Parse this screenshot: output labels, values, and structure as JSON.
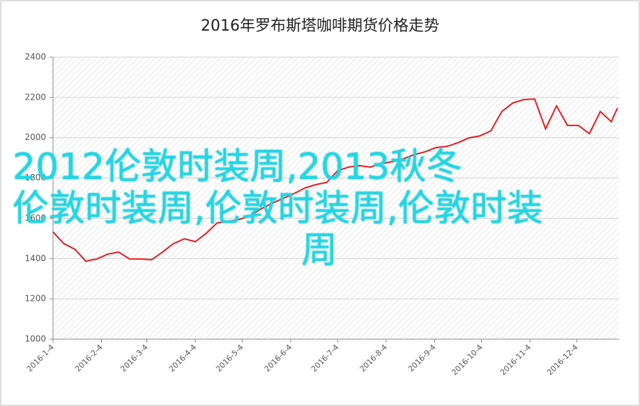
{
  "chart_data": {
    "type": "line",
    "title": "2016年罗布斯塔咖啡期货价格走势",
    "x": [
      "2016-1-4",
      "2016-1-11",
      "2016-1-18",
      "2016-1-25",
      "2016-2-1",
      "2016-2-8",
      "2016-2-15",
      "2016-2-22",
      "2016-2-29",
      "2016-3-7",
      "2016-3-14",
      "2016-3-21",
      "2016-3-28",
      "2016-4-4",
      "2016-4-11",
      "2016-4-18",
      "2016-4-25",
      "2016-5-2",
      "2016-5-9",
      "2016-5-16",
      "2016-5-23",
      "2016-5-30",
      "2016-6-6",
      "2016-6-13",
      "2016-6-20",
      "2016-6-27",
      "2016-7-4",
      "2016-7-11",
      "2016-7-18",
      "2016-7-25",
      "2016-8-1",
      "2016-8-8",
      "2016-8-15",
      "2016-8-22",
      "2016-8-29",
      "2016-9-5",
      "2016-9-12",
      "2016-9-19",
      "2016-9-26",
      "2016-10-3",
      "2016-10-10",
      "2016-10-17",
      "2016-10-24",
      "2016-10-31",
      "2016-11-7",
      "2016-11-14",
      "2016-11-21",
      "2016-11-28",
      "2016-12-5",
      "2016-12-12",
      "2016-12-19",
      "2016-12-26",
      "2016-12-30"
    ],
    "series": [
      {
        "color": "#e8191c",
        "values": [
          1532,
          1474,
          1446,
          1387,
          1398,
          1422,
          1432,
          1398,
          1398,
          1394,
          1432,
          1474,
          1498,
          1484,
          1525,
          1577,
          1584,
          1594,
          1612,
          1646,
          1674,
          1698,
          1722,
          1750,
          1767,
          1778,
          1836,
          1854,
          1861,
          1854,
          1871,
          1881,
          1895,
          1916,
          1930,
          1951,
          1957,
          1975,
          1999,
          2009,
          2034,
          2130,
          2172,
          2189,
          2192,
          2044,
          2158,
          2061,
          2061,
          2020,
          2130,
          2079,
          2148
        ]
      }
    ],
    "xlim": [
      "2016-1-4",
      "2016-12-31"
    ],
    "xticks": [
      "2016-1-4",
      "2016-2-4",
      "2016-3-4",
      "2016-4-4",
      "2016-5-4",
      "2016-6-4",
      "2016-7-4",
      "2016-8-4",
      "2016-9-4",
      "2016-10-4",
      "2016-11-4",
      "2016-12-4"
    ],
    "ylim": [
      1000,
      2400
    ],
    "yticks": [
      1000,
      1200,
      1400,
      1600,
      1800,
      2000,
      2200,
      2400
    ],
    "grid": true
  },
  "overlay_lines": [
    "2012伦敦时装周,2013秋冬",
    "伦敦时装周,伦敦时装周,伦敦时装",
    "周"
  ]
}
